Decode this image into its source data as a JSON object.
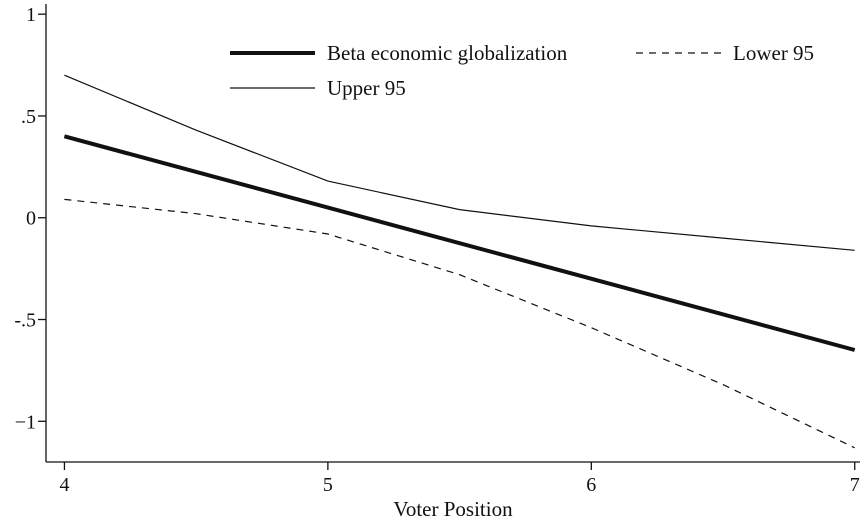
{
  "chart_data": {
    "type": "line",
    "title": "",
    "xlabel": "Voter Position",
    "ylabel": "",
    "xlim": [
      3.93,
      7.02
    ],
    "ylim": [
      -1.2,
      1.05
    ],
    "xticks": [
      {
        "value": 4,
        "label": "4"
      },
      {
        "value": 5,
        "label": "5"
      },
      {
        "value": 6,
        "label": "6"
      },
      {
        "value": 7,
        "label": "7"
      }
    ],
    "yticks": [
      {
        "value": 1,
        "label": "1"
      },
      {
        "value": 0.5,
        "label": ".5"
      },
      {
        "value": 0,
        "label": "0"
      },
      {
        "value": -0.5,
        "label": "-.5"
      },
      {
        "value": -1,
        "label": "−1"
      }
    ],
    "grid": false,
    "legend": {
      "position": "top-right",
      "columns": 2
    },
    "series": [
      {
        "name": "Beta economic globalization",
        "style": "thick-solid",
        "color": "#111111",
        "points": [
          [
            4,
            0.4
          ],
          [
            7,
            -0.65
          ]
        ]
      },
      {
        "name": "Lower 95",
        "style": "dashed",
        "color": "#111111",
        "points": [
          [
            4,
            0.09
          ],
          [
            4.5,
            0.02
          ],
          [
            5,
            -0.08
          ],
          [
            5.5,
            -0.28
          ],
          [
            6,
            -0.54
          ],
          [
            6.5,
            -0.82
          ],
          [
            7,
            -1.13
          ]
        ]
      },
      {
        "name": "Upper 95",
        "style": "thin-solid",
        "color": "#111111",
        "points": [
          [
            4,
            0.7
          ],
          [
            4.5,
            0.43
          ],
          [
            5,
            0.18
          ],
          [
            5.5,
            0.04
          ],
          [
            6,
            -0.04
          ],
          [
            6.5,
            -0.1
          ],
          [
            7,
            -0.16
          ]
        ]
      }
    ]
  }
}
